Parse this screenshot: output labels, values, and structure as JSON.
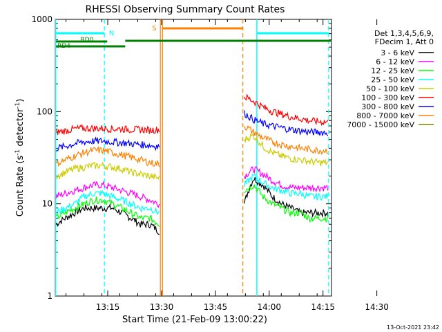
{
  "chart_data": {
    "type": "line",
    "title": "RHESSI Observing Summary Count Rates",
    "xlabel": "Start Time (21-Feb-09 13:00:22)",
    "ylabel_main": "Count Rate (s",
    "ylabel_sup1": "-1",
    "ylabel_mid": " detector",
    "ylabel_sup2": "-1",
    "ylabel_end": ")",
    "timestamp": "13-Oct-2021 23:42",
    "x_ticks": [
      "13:15",
      "13:30",
      "13:45",
      "14:00",
      "14:15",
      "14:30"
    ],
    "y_ticks": [
      "1",
      "10",
      "100",
      "1000"
    ],
    "xlim_minutes": [
      0,
      77
    ],
    "ylim": [
      1,
      1000
    ],
    "y_scale": "log",
    "legend_header": [
      "Det 1,3,4,5,6,9,",
      "FDecim 1, Att 0"
    ],
    "legend_position": "right",
    "series": [
      {
        "name": "3 - 6 keV",
        "color": "#000000",
        "values": [
          6,
          7,
          8,
          9,
          9,
          9,
          9,
          8,
          7,
          6,
          6,
          5,
          10,
          19,
          16,
          12,
          10,
          9,
          8,
          8,
          8,
          8
        ]
      },
      {
        "name": "6 - 12 keV",
        "color": "#ff00ff",
        "values": [
          12,
          13,
          14,
          15,
          16,
          16,
          15,
          14,
          13,
          12,
          11,
          10,
          20,
          24,
          21,
          18,
          16,
          15,
          15,
          15,
          15,
          15
        ]
      },
      {
        "name": "12 - 25 keV",
        "color": "#00ff00",
        "values": [
          7,
          8,
          9,
          10,
          11,
          11,
          10,
          9,
          8,
          7,
          7,
          6,
          14,
          16,
          12,
          10,
          9,
          8,
          8,
          7,
          7,
          7
        ]
      },
      {
        "name": "25 - 50 keV",
        "color": "#00ffff",
        "values": [
          8,
          9,
          10,
          12,
          13,
          13,
          12,
          11,
          10,
          9,
          9,
          8,
          16,
          20,
          17,
          15,
          14,
          13,
          13,
          12,
          12,
          12
        ]
      },
      {
        "name": "50 - 100 keV",
        "color": "#cccc00",
        "values": [
          20,
          22,
          24,
          25,
          26,
          26,
          25,
          24,
          22,
          21,
          20,
          19,
          50,
          55,
          42,
          36,
          33,
          31,
          30,
          29,
          28,
          28
        ]
      },
      {
        "name": "100 - 300 keV",
        "color": "#ff0000",
        "values": [
          60,
          62,
          65,
          66,
          66,
          66,
          65,
          65,
          64,
          64,
          63,
          64,
          145,
          130,
          112,
          101,
          94,
          88,
          84,
          80,
          78,
          77
        ]
      },
      {
        "name": "300 - 800 keV",
        "color": "#0000ff",
        "values": [
          40,
          42,
          45,
          47,
          48,
          48,
          47,
          46,
          45,
          44,
          43,
          42,
          96,
          82,
          74,
          70,
          67,
          64,
          62,
          60,
          60,
          59
        ]
      },
      {
        "name": "800 - 7000 keV",
        "color": "#ff8000",
        "values": [
          27,
          30,
          33,
          36,
          38,
          38,
          36,
          34,
          32,
          30,
          28,
          27,
          70,
          60,
          52,
          47,
          44,
          42,
          40,
          39,
          38,
          38
        ]
      },
      {
        "name": "7000 - 15000 keV",
        "color": "#808000",
        "values": []
      }
    ],
    "annotations": {
      "N": "N",
      "S": "S",
      "RD0": "RD0",
      "RD4": "RD4"
    }
  }
}
